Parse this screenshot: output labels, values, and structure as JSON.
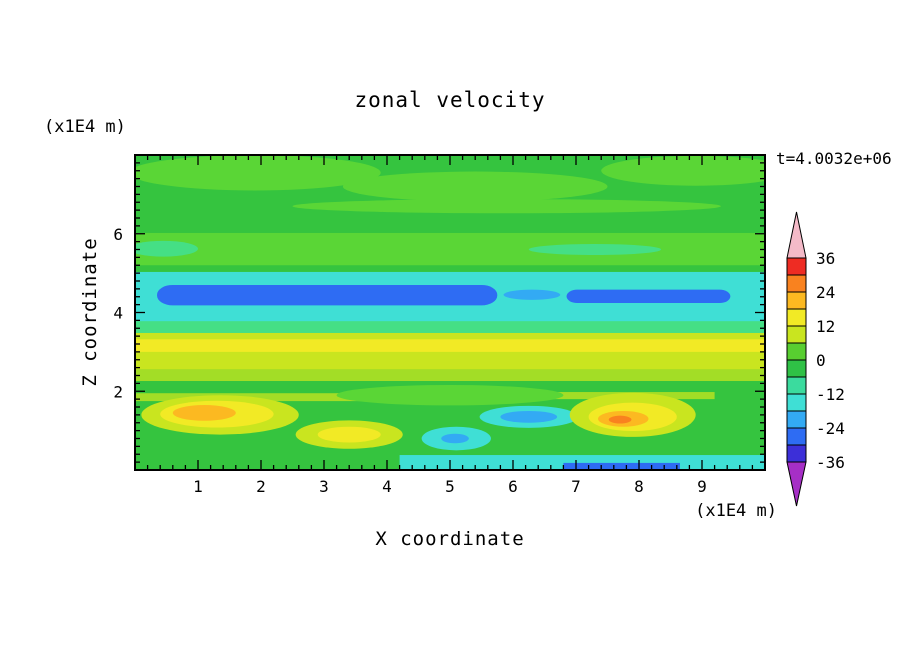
{
  "chart_data": {
    "type": "filled_contour",
    "title": "zonal velocity",
    "xlabel": "X coordinate",
    "ylabel": "Z coordinate",
    "x_units_label": "(x1E4 m)",
    "y_units_label": "(x1E4 m)",
    "annotation": "t=4.0032e+06",
    "xlim": [
      0,
      10
    ],
    "ylim": [
      0,
      8
    ],
    "x_major_ticks": [
      1,
      2,
      3,
      4,
      5,
      6,
      7,
      8,
      9
    ],
    "y_major_ticks": [
      2,
      4,
      6
    ],
    "minor_tick_step": 0.2,
    "grid": false,
    "legend_position": "right",
    "colorbar": {
      "tick_labels": [
        "36",
        "24",
        "12",
        "0",
        "-12",
        "-24",
        "-36"
      ],
      "levels": [
        36,
        30,
        24,
        18,
        12,
        6,
        0,
        -6,
        -12,
        -18,
        -24,
        -30,
        -36
      ],
      "band_colors": [
        "#ee2c23",
        "#f9821f",
        "#fcb921",
        "#f2ea25",
        "#c9e51f",
        "#58ce30",
        "#2fc146",
        "#3bdb9e",
        "#3fdfd5",
        "#33aaf4",
        "#2e6cf3",
        "#3c2fd8"
      ],
      "over_arrow_color": "#f4bac8",
      "under_arrow_color": "#a62fc6"
    },
    "palette": {
      "green": "#35c43f",
      "green2": "#5ad636",
      "seagreen": "#45df85",
      "chartreuse": "#a3dd26",
      "yellowgreen": "#c9e51f",
      "yellow": "#f2ea25",
      "amber": "#fcb921",
      "orange": "#f9821f",
      "cyan": "#3fdfd5",
      "skyblue": "#33aaf4",
      "blue": "#2e6cf3"
    },
    "regions": [
      {
        "kind": "rect",
        "x": [
          0,
          10
        ],
        "z": [
          0,
          8
        ],
        "color": "green",
        "value": -3
      },
      {
        "kind": "ellipse",
        "cx": 1.9,
        "cz": 7.55,
        "rx": 2.0,
        "rz": 0.45,
        "color": "green2",
        "value": 3
      },
      {
        "kind": "ellipse",
        "cx": 5.4,
        "cz": 7.2,
        "rx": 2.1,
        "rz": 0.38,
        "color": "green2",
        "value": 3
      },
      {
        "kind": "ellipse",
        "cx": 8.9,
        "cz": 7.6,
        "rx": 1.5,
        "rz": 0.38,
        "color": "green2",
        "value": 3
      },
      {
        "kind": "ellipse",
        "cx": 5.9,
        "cz": 6.7,
        "rx": 3.4,
        "rz": 0.18,
        "color": "green2",
        "value": 3
      },
      {
        "kind": "rect",
        "x": [
          0,
          10
        ],
        "z": [
          5.2,
          6.02
        ],
        "color": "green2",
        "value": 3
      },
      {
        "kind": "ellipse",
        "cx": 0.45,
        "cz": 5.62,
        "rx": 0.55,
        "rz": 0.2,
        "color": "seagreen",
        "value": -6
      },
      {
        "kind": "ellipse",
        "cx": 7.3,
        "cz": 5.6,
        "rx": 1.05,
        "rz": 0.14,
        "color": "seagreen",
        "value": -6
      },
      {
        "kind": "rect",
        "x": [
          0,
          10
        ],
        "z": [
          3.6,
          5.03
        ],
        "color": "cyan",
        "value": -15
      },
      {
        "kind": "rect",
        "x": [
          0.35,
          5.75
        ],
        "z": [
          4.18,
          4.7
        ],
        "round": 0.25,
        "color": "blue",
        "value": -27
      },
      {
        "kind": "rect",
        "x": [
          6.85,
          9.45
        ],
        "z": [
          4.24,
          4.58
        ],
        "round": 0.17,
        "color": "blue",
        "value": -27
      },
      {
        "kind": "ellipse",
        "cx": 6.3,
        "cz": 4.45,
        "rx": 0.45,
        "rz": 0.13,
        "color": "skyblue",
        "value": -21
      },
      {
        "kind": "rect",
        "x": [
          0,
          10
        ],
        "z": [
          3.3,
          3.78
        ],
        "color": "seagreen",
        "value": -6
      },
      {
        "kind": "rect",
        "x": [
          0,
          10
        ],
        "z": [
          2.52,
          3.48
        ],
        "color": "yellowgreen",
        "value": 9
      },
      {
        "kind": "rect",
        "x": [
          0,
          10
        ],
        "z": [
          3.0,
          3.32
        ],
        "color": "yellow",
        "value": 15
      },
      {
        "kind": "rect",
        "x": [
          0,
          10
        ],
        "z": [
          2.26,
          2.56
        ],
        "color": "chartreuse",
        "value": 7
      },
      {
        "kind": "rect",
        "x": [
          0,
          4.3
        ],
        "z": [
          1.75,
          1.95
        ],
        "color": "chartreuse",
        "value": 7
      },
      {
        "kind": "rect",
        "x": [
          6.6,
          9.2
        ],
        "z": [
          1.8,
          1.98
        ],
        "color": "chartreuse",
        "value": 7
      },
      {
        "kind": "ellipse",
        "cx": 5.0,
        "cz": 1.9,
        "rx": 1.8,
        "rz": 0.26,
        "color": "green2",
        "value": 3
      },
      {
        "kind": "ellipse",
        "cx": 1.35,
        "cz": 1.4,
        "rx": 1.25,
        "rz": 0.5,
        "color": "yellowgreen",
        "value": 9
      },
      {
        "kind": "ellipse",
        "cx": 1.3,
        "cz": 1.42,
        "rx": 0.9,
        "rz": 0.34,
        "color": "yellow",
        "value": 15
      },
      {
        "kind": "ellipse",
        "cx": 1.1,
        "cz": 1.45,
        "rx": 0.5,
        "rz": 0.2,
        "color": "amber",
        "value": 21
      },
      {
        "kind": "ellipse",
        "cx": 3.4,
        "cz": 0.9,
        "rx": 0.85,
        "rz": 0.36,
        "color": "yellowgreen",
        "value": 9
      },
      {
        "kind": "ellipse",
        "cx": 3.4,
        "cz": 0.9,
        "rx": 0.5,
        "rz": 0.2,
        "color": "yellow",
        "value": 15
      },
      {
        "kind": "ellipse",
        "cx": 5.1,
        "cz": 0.8,
        "rx": 0.55,
        "rz": 0.3,
        "color": "cyan",
        "value": -15
      },
      {
        "kind": "ellipse",
        "cx": 5.08,
        "cz": 0.8,
        "rx": 0.22,
        "rz": 0.12,
        "color": "skyblue",
        "value": -21
      },
      {
        "kind": "ellipse",
        "cx": 6.25,
        "cz": 1.35,
        "rx": 0.78,
        "rz": 0.28,
        "color": "cyan",
        "value": -15
      },
      {
        "kind": "ellipse",
        "cx": 6.25,
        "cz": 1.35,
        "rx": 0.45,
        "rz": 0.15,
        "color": "skyblue",
        "value": -21
      },
      {
        "kind": "ellipse",
        "cx": 7.9,
        "cz": 1.4,
        "rx": 1.0,
        "rz": 0.56,
        "color": "yellowgreen",
        "value": 9
      },
      {
        "kind": "ellipse",
        "cx": 7.9,
        "cz": 1.35,
        "rx": 0.7,
        "rz": 0.36,
        "color": "yellow",
        "value": 15
      },
      {
        "kind": "ellipse",
        "cx": 7.75,
        "cz": 1.3,
        "rx": 0.4,
        "rz": 0.2,
        "color": "amber",
        "value": 21
      },
      {
        "kind": "ellipse",
        "cx": 7.7,
        "cz": 1.28,
        "rx": 0.18,
        "rz": 0.1,
        "color": "orange",
        "value": 27
      },
      {
        "kind": "rect",
        "x": [
          4.2,
          10
        ],
        "z": [
          0,
          0.38
        ],
        "color": "cyan",
        "value": -15
      },
      {
        "kind": "rect",
        "x": [
          6.8,
          8.65
        ],
        "z": [
          0,
          0.18
        ],
        "color": "blue",
        "value": -27
      }
    ]
  }
}
